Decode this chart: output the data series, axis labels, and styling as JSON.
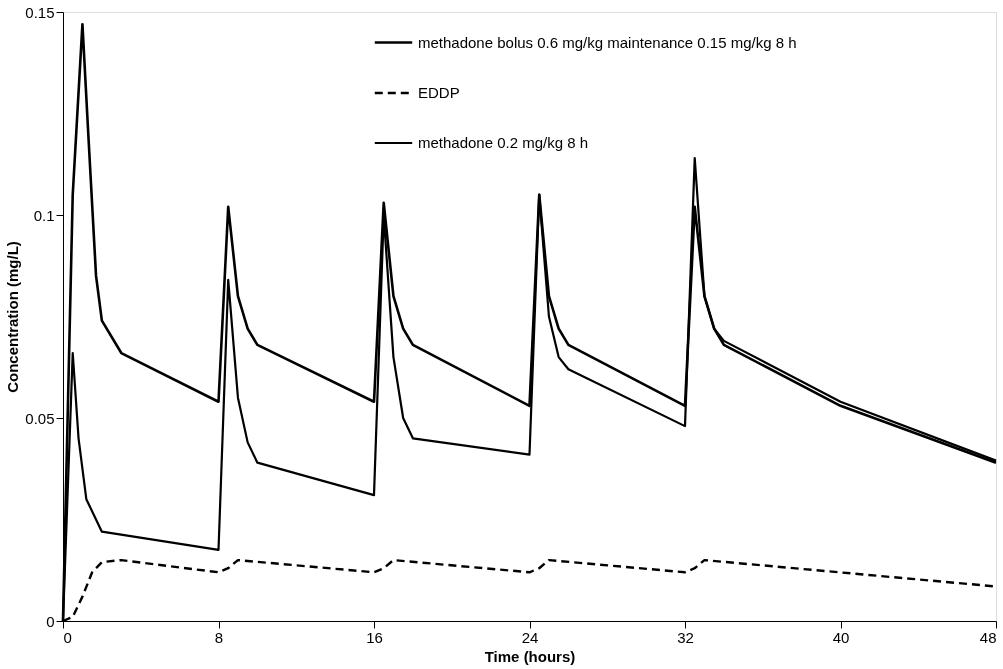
{
  "chart_data": {
    "type": "line",
    "xlabel": "Time (hours)",
    "ylabel": "Concentration (mg/L)",
    "xlim": [
      0,
      48
    ],
    "xticks": [
      0,
      8,
      16,
      24,
      32,
      40,
      48
    ],
    "ylim": [
      0,
      0.15
    ],
    "yticks": [
      0,
      0.05,
      0.1,
      0.15
    ],
    "grid": false,
    "legend": "top right",
    "marker": "none",
    "series": [
      {
        "name": "methadone bolus 0.6 mg/kg maintenance 0.15 mg/kg 8 h",
        "color": "#000000",
        "line_style": "solid",
        "x": [
          0,
          0.5,
          1.0,
          1.3,
          1.7,
          2,
          3,
          8,
          8.5,
          9,
          9.5,
          10,
          16,
          16.5,
          17,
          17.5,
          18,
          24,
          24.5,
          25,
          25.5,
          26,
          32,
          32.5,
          33,
          33.5,
          34,
          40,
          48
        ],
        "values": [
          0,
          0.105,
          0.147,
          0.12,
          0.085,
          0.074,
          0.066,
          0.054,
          0.102,
          0.08,
          0.072,
          0.068,
          0.054,
          0.103,
          0.08,
          0.072,
          0.068,
          0.053,
          0.105,
          0.08,
          0.072,
          0.068,
          0.053,
          0.102,
          0.08,
          0.072,
          0.068,
          0.053,
          0.039
        ]
      },
      {
        "name": "EDDP",
        "color": "#000000",
        "line_style": "dashed",
        "x": [
          0,
          0.5,
          1,
          1.5,
          2,
          3,
          8,
          8.5,
          9,
          16,
          16.5,
          17,
          24,
          24.5,
          25,
          32,
          32.5,
          33,
          48
        ],
        "values": [
          0,
          0.001,
          0.006,
          0.012,
          0.0145,
          0.015,
          0.012,
          0.013,
          0.015,
          0.012,
          0.013,
          0.015,
          0.012,
          0.013,
          0.015,
          0.012,
          0.013,
          0.015,
          0.0085
        ]
      },
      {
        "name": "methadone 0.2 mg/kg 8 h",
        "color": "#000000",
        "line_style": "solid",
        "x": [
          0,
          0.5,
          0.8,
          1.2,
          2,
          8,
          8.5,
          9,
          9.5,
          10,
          16,
          16.5,
          17,
          17.5,
          18,
          24,
          24.5,
          25,
          25.5,
          26,
          32,
          32.5,
          33,
          33.5,
          34,
          40,
          48
        ],
        "values": [
          0,
          0.066,
          0.045,
          0.03,
          0.022,
          0.0175,
          0.084,
          0.055,
          0.044,
          0.039,
          0.031,
          0.1,
          0.065,
          0.05,
          0.045,
          0.041,
          0.105,
          0.075,
          0.065,
          0.062,
          0.048,
          0.114,
          0.08,
          0.072,
          0.069,
          0.054,
          0.0395
        ]
      }
    ]
  }
}
